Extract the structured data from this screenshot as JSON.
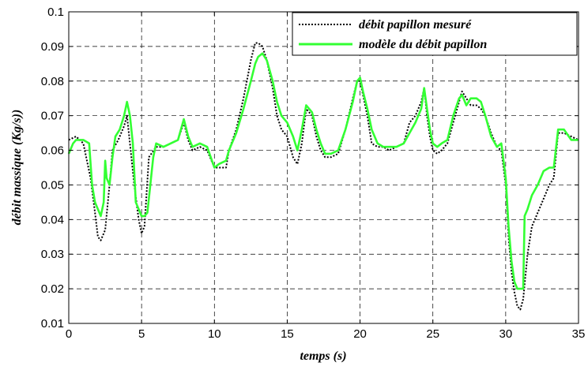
{
  "chart_data": {
    "type": "line",
    "xlabel": "temps (s)",
    "ylabel": "débit massique (Kg/s))",
    "xlim": [
      0,
      35
    ],
    "ylim": [
      0.01,
      0.1
    ],
    "xticks": [
      0,
      5,
      10,
      15,
      20,
      25,
      30,
      35
    ],
    "yticks": [
      0.01,
      0.02,
      0.03,
      0.04,
      0.05,
      0.06,
      0.07,
      0.08,
      0.09,
      0.1
    ],
    "xtick_labels": [
      "0",
      "5",
      "10",
      "15",
      "20",
      "25",
      "30",
      "35"
    ],
    "ytick_labels": [
      "0.01",
      "0.02",
      "0.03",
      "0.04",
      "0.05",
      "0.06",
      "0.07",
      "0.08",
      "0.09",
      "0.1"
    ],
    "grid": true,
    "grid_style": "dashed",
    "legend_position": "top-right",
    "series": [
      {
        "name": "débit papillon mesuré",
        "color": "#000000",
        "style": "dotted",
        "x": [
          0,
          0.5,
          1.0,
          1.5,
          1.8,
          2.0,
          2.2,
          2.5,
          2.8,
          3.0,
          3.4,
          3.8,
          4.0,
          4.2,
          4.5,
          4.8,
          5.0,
          5.2,
          5.5,
          6.0,
          6.5,
          7.0,
          7.5,
          7.9,
          8.2,
          8.5,
          9.0,
          9.5,
          10.0,
          10.3,
          10.8,
          11.0,
          11.5,
          12.0,
          12.5,
          12.8,
          13.0,
          13.3,
          13.6,
          14.0,
          14.3,
          14.6,
          15.0,
          15.4,
          15.7,
          16.0,
          16.3,
          16.7,
          17.0,
          17.3,
          17.6,
          18.0,
          18.5,
          19.0,
          19.5,
          19.8,
          20.0,
          20.2,
          20.5,
          20.8,
          21.2,
          21.6,
          22.0,
          22.5,
          23.0,
          23.4,
          23.8,
          24.2,
          24.4,
          24.6,
          24.8,
          25.0,
          25.3,
          25.6,
          26.0,
          26.4,
          26.8,
          27.0,
          27.3,
          27.6,
          28.0,
          28.3,
          28.6,
          29.0,
          29.4,
          29.7,
          30.0,
          30.2,
          30.4,
          30.6,
          30.8,
          31.0,
          31.2,
          31.5,
          31.8,
          32.2,
          32.6,
          33.0,
          33.3,
          33.6,
          34.0,
          34.5,
          35.0
        ],
        "y": [
          0.063,
          0.064,
          0.062,
          0.052,
          0.042,
          0.035,
          0.034,
          0.037,
          0.05,
          0.06,
          0.063,
          0.067,
          0.07,
          0.062,
          0.05,
          0.04,
          0.036,
          0.038,
          0.058,
          0.061,
          0.061,
          0.062,
          0.063,
          0.068,
          0.063,
          0.06,
          0.061,
          0.06,
          0.055,
          0.055,
          0.055,
          0.06,
          0.066,
          0.075,
          0.086,
          0.091,
          0.091,
          0.09,
          0.086,
          0.078,
          0.07,
          0.066,
          0.064,
          0.058,
          0.056,
          0.062,
          0.072,
          0.07,
          0.064,
          0.06,
          0.058,
          0.058,
          0.059,
          0.066,
          0.075,
          0.08,
          0.08,
          0.076,
          0.07,
          0.062,
          0.061,
          0.061,
          0.06,
          0.061,
          0.062,
          0.068,
          0.07,
          0.074,
          0.078,
          0.07,
          0.064,
          0.06,
          0.059,
          0.06,
          0.062,
          0.068,
          0.074,
          0.077,
          0.075,
          0.073,
          0.073,
          0.072,
          0.07,
          0.065,
          0.061,
          0.06,
          0.05,
          0.035,
          0.025,
          0.019,
          0.015,
          0.014,
          0.017,
          0.03,
          0.038,
          0.042,
          0.046,
          0.05,
          0.052,
          0.065,
          0.065,
          0.064,
          0.063
        ]
      },
      {
        "name": "modèle du débit papillon",
        "color": "#33ff33",
        "style": "solid",
        "x": [
          0,
          0.3,
          0.5,
          1.0,
          1.4,
          1.6,
          1.8,
          2.0,
          2.2,
          2.4,
          2.5,
          2.6,
          2.8,
          3.0,
          3.2,
          3.5,
          3.8,
          4.0,
          4.2,
          4.4,
          4.6,
          4.8,
          5.0,
          5.2,
          5.4,
          5.6,
          5.8,
          6.0,
          6.5,
          7.0,
          7.5,
          7.9,
          8.2,
          8.5,
          9.0,
          9.5,
          10.0,
          10.3,
          10.8,
          11.0,
          11.5,
          12.0,
          12.5,
          12.8,
          13.0,
          13.3,
          13.6,
          14.0,
          14.3,
          14.6,
          15.0,
          15.4,
          15.7,
          16.0,
          16.3,
          16.7,
          17.0,
          17.3,
          17.6,
          18.0,
          18.5,
          19.0,
          19.5,
          19.8,
          20.0,
          20.2,
          20.5,
          20.8,
          21.2,
          21.6,
          22.0,
          22.5,
          23.0,
          23.4,
          23.8,
          24.2,
          24.4,
          24.6,
          24.8,
          25.0,
          25.3,
          25.6,
          26.0,
          26.4,
          26.8,
          27.0,
          27.3,
          27.6,
          28.0,
          28.3,
          28.6,
          29.0,
          29.4,
          29.7,
          30.0,
          30.2,
          30.4,
          30.6,
          30.8,
          31.0,
          31.2,
          31.3,
          31.5,
          31.8,
          32.2,
          32.6,
          33.0,
          33.3,
          33.6,
          34.0,
          34.5,
          35.0
        ],
        "y": [
          0.059,
          0.062,
          0.063,
          0.063,
          0.062,
          0.05,
          0.045,
          0.043,
          0.041,
          0.045,
          0.057,
          0.052,
          0.05,
          0.058,
          0.064,
          0.066,
          0.07,
          0.074,
          0.07,
          0.062,
          0.045,
          0.043,
          0.041,
          0.041,
          0.042,
          0.05,
          0.058,
          0.062,
          0.061,
          0.062,
          0.063,
          0.069,
          0.064,
          0.061,
          0.062,
          0.061,
          0.055,
          0.056,
          0.057,
          0.06,
          0.065,
          0.072,
          0.08,
          0.085,
          0.087,
          0.088,
          0.086,
          0.08,
          0.074,
          0.07,
          0.068,
          0.064,
          0.06,
          0.066,
          0.073,
          0.071,
          0.066,
          0.062,
          0.059,
          0.059,
          0.06,
          0.066,
          0.074,
          0.08,
          0.081,
          0.077,
          0.072,
          0.066,
          0.062,
          0.061,
          0.061,
          0.061,
          0.062,
          0.065,
          0.068,
          0.072,
          0.078,
          0.072,
          0.066,
          0.062,
          0.061,
          0.062,
          0.063,
          0.07,
          0.075,
          0.076,
          0.073,
          0.075,
          0.075,
          0.074,
          0.07,
          0.064,
          0.061,
          0.062,
          0.052,
          0.038,
          0.028,
          0.022,
          0.02,
          0.02,
          0.02,
          0.041,
          0.043,
          0.047,
          0.05,
          0.054,
          0.055,
          0.055,
          0.066,
          0.066,
          0.063,
          0.063
        ]
      }
    ]
  }
}
